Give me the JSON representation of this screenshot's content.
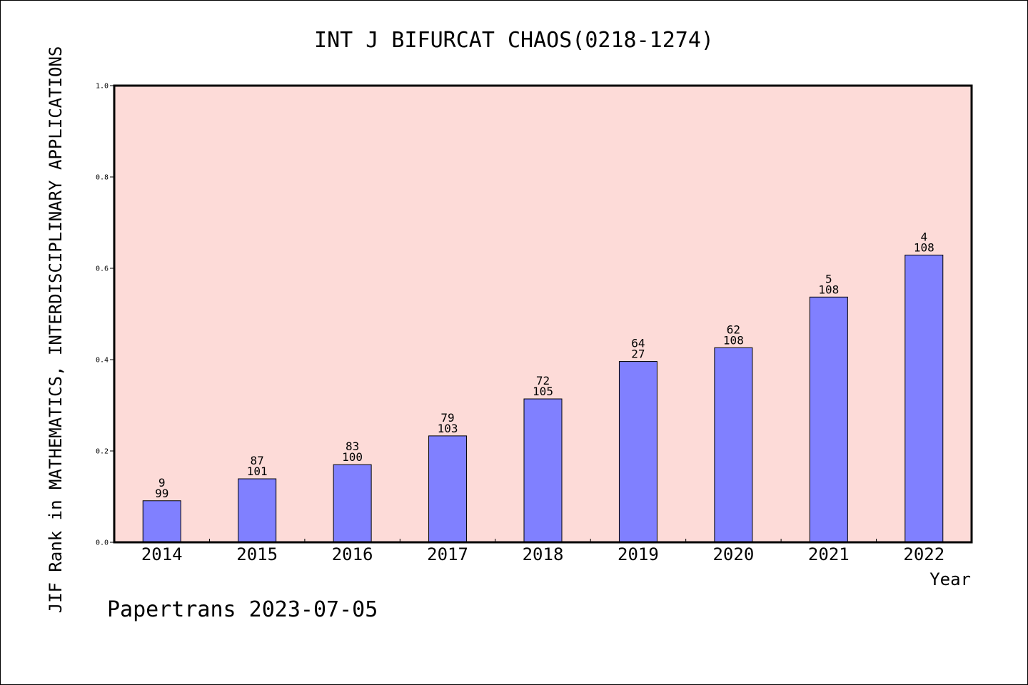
{
  "chart_data": {
    "type": "bar",
    "title": "INT J BIFURCAT CHAOS(0218-1274)",
    "xlabel": "Year",
    "ylabel": "JIF Rank in MATHEMATICS,  INTERDISCIPLINARY APPLICATIONS",
    "ylim": [
      0,
      1.0
    ],
    "yticks": [
      "0.0",
      "0.2",
      "0.4",
      "0.6",
      "0.8",
      "1.0"
    ],
    "categories": [
      "2014",
      "2015",
      "2016",
      "2017",
      "2018",
      "2019",
      "2020",
      "2021",
      "2022"
    ],
    "values": [
      0.091,
      0.139,
      0.17,
      0.233,
      0.314,
      0.396,
      0.426,
      0.537,
      0.629
    ],
    "rank_labels": [
      "9",
      "87",
      "83",
      "79",
      "72",
      "64",
      "62",
      "5",
      "4"
    ],
    "total_labels": [
      "99",
      "101",
      "100",
      "103",
      "105",
      "27",
      "108",
      "108",
      "108"
    ],
    "grid": false,
    "colors": {
      "plot_background": "#fddbd8",
      "bar_fill": "#8080ff",
      "bar_stroke": "#000000"
    }
  },
  "footer": {
    "text": "Papertrans 2023-07-05"
  }
}
